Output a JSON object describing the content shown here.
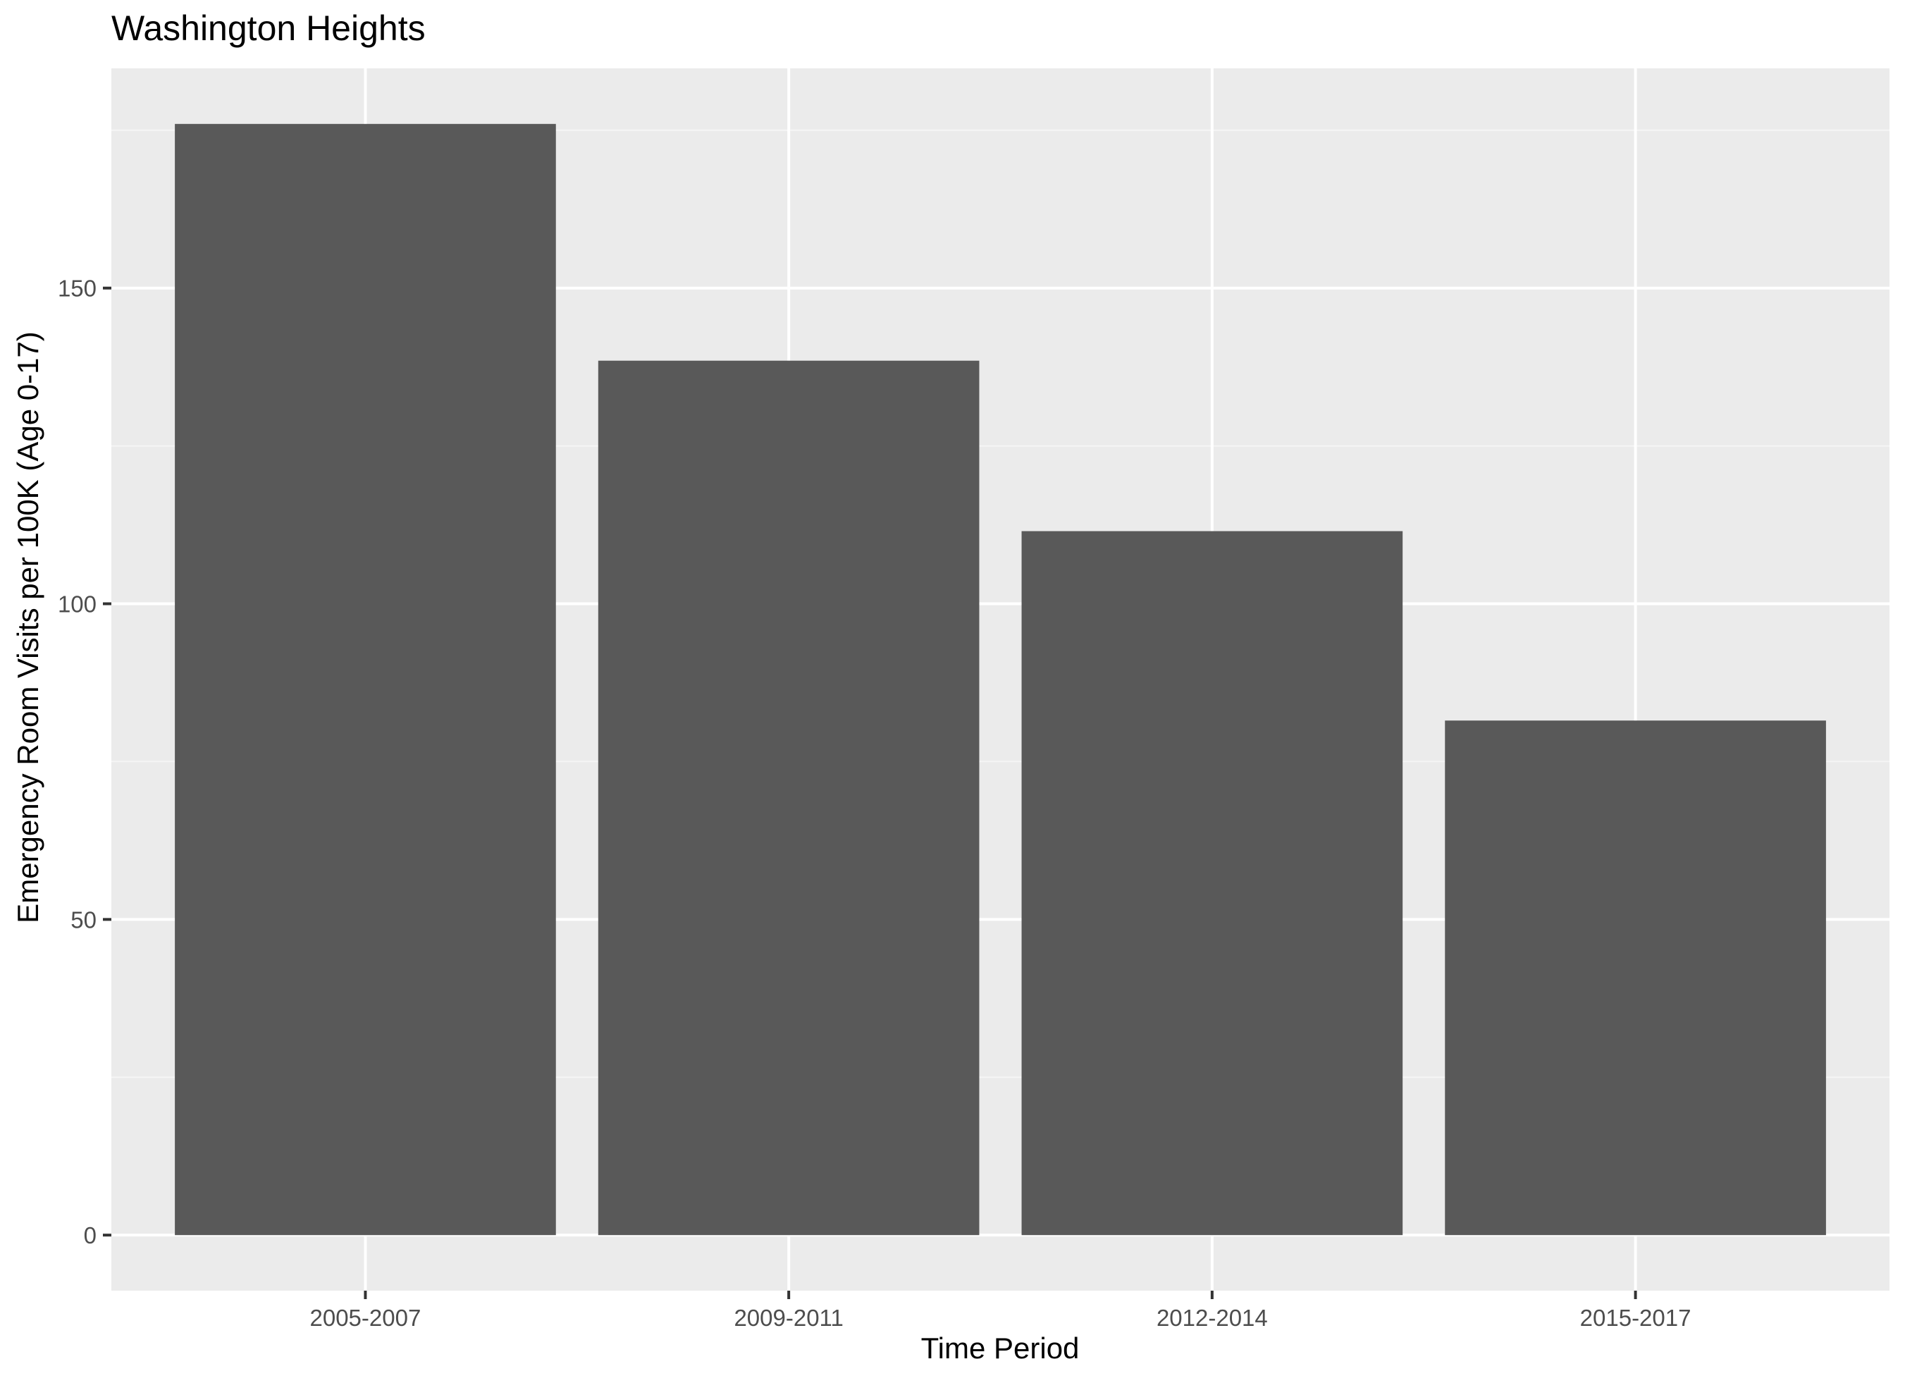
{
  "chart_data": {
    "type": "bar",
    "title": "Washington Heights",
    "xlabel": "Time Period",
    "ylabel": "Emergency Room Visits per 100K (Age 0-17)",
    "categories": [
      "2005-2007",
      "2009-2011",
      "2012-2014",
      "2015-2017"
    ],
    "values": [
      176,
      138.5,
      111.5,
      81.5
    ],
    "ylim": [
      -8.8,
      184.8
    ],
    "yticks": [
      0,
      50,
      100,
      150
    ],
    "ytick_labels": [
      "0",
      "50",
      "100",
      "150"
    ],
    "grid": true,
    "legend": "none",
    "colors": {
      "bar": "#595959",
      "panel_background": "#ebebeb",
      "grid_major": "#ffffff",
      "grid_minor": "#f5f5f5",
      "tick_label": "#4d4d4d",
      "tick_mark": "#333333"
    }
  }
}
